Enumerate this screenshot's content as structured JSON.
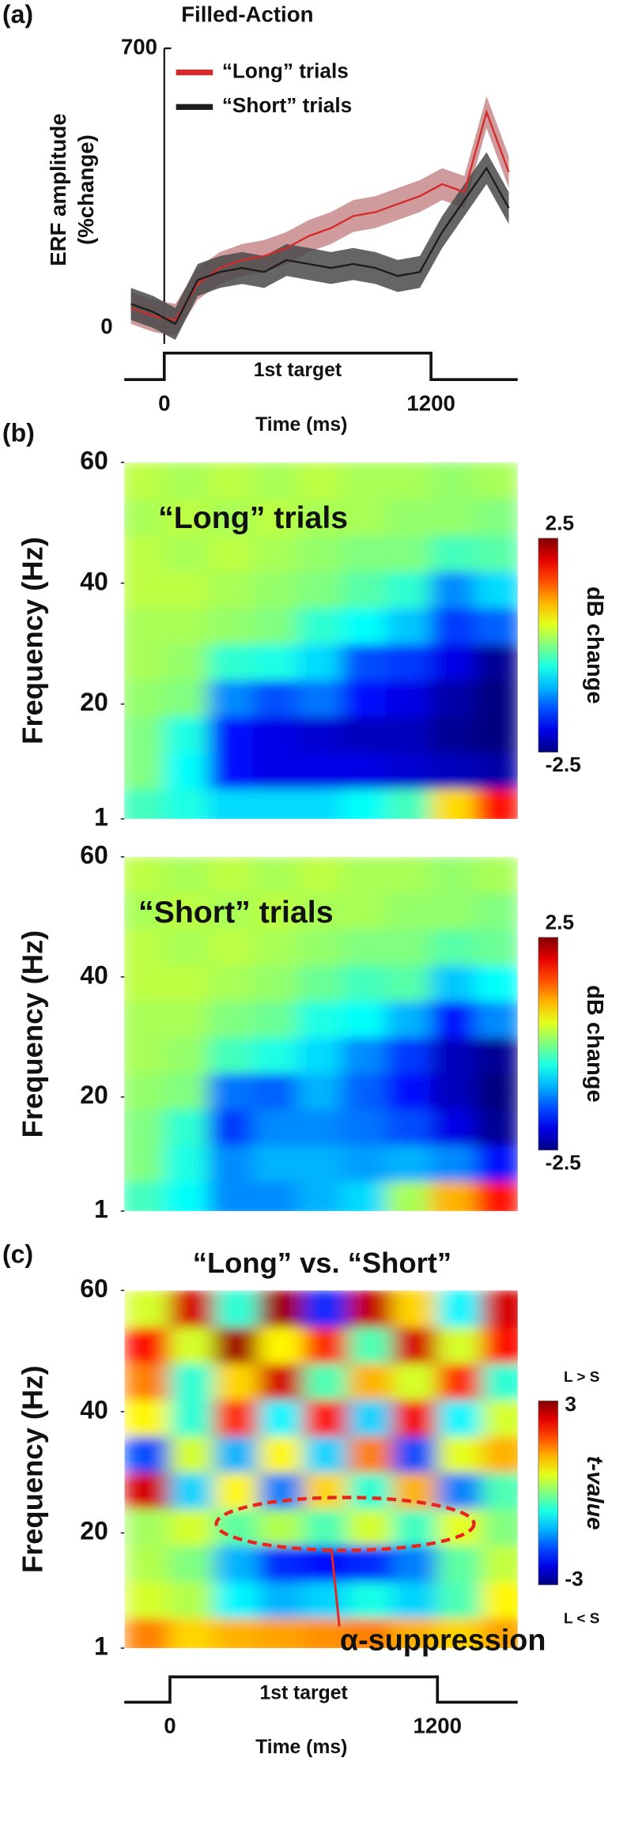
{
  "chart_data": [
    {
      "type": "line",
      "panel_label": "(a)",
      "title": "Filled-Action",
      "y_label": [
        "ERF amplitude",
        "(%change)"
      ],
      "x_label": "Time (ms)",
      "annotation": "1st target",
      "x": [
        -150,
        -50,
        50,
        150,
        250,
        350,
        450,
        550,
        650,
        750,
        850,
        950,
        1050,
        1150,
        1250,
        1350,
        1450,
        1550
      ],
      "series": [
        {
          "name": "“Long” trials",
          "color": "#d42a2a",
          "band_color": "#c88a8c",
          "error": 40,
          "values": [
            50,
            30,
            20,
            110,
            150,
            170,
            180,
            200,
            230,
            250,
            280,
            290,
            310,
            330,
            360,
            340,
            540,
            390
          ]
        },
        {
          "name": "“Short” trials",
          "color": "#1c1c1c",
          "band_color": "#4a4a4a",
          "error": 40,
          "values": [
            60,
            40,
            10,
            120,
            140,
            150,
            140,
            170,
            160,
            150,
            160,
            150,
            130,
            140,
            240,
            320,
            400,
            300
          ]
        }
      ],
      "xlim": [
        -180,
        1590
      ],
      "ylim": [
        -40,
        700
      ],
      "xticks": [
        0,
        1200
      ],
      "yticks": [
        0,
        700
      ]
    },
    {
      "type": "heatmap",
      "panel_label": "(b)",
      "title": "“Long” trials",
      "y_label": "Frequency (Hz)",
      "colorbar_label": "dB change",
      "x": [
        -100,
        100,
        300,
        500,
        700,
        900,
        1100,
        1300,
        1500
      ],
      "y": [
        3,
        9,
        15,
        21,
        27,
        33,
        39,
        45,
        51,
        57
      ],
      "z": [
        [
          -0.3,
          -0.5,
          -0.8,
          -0.8,
          -0.8,
          -0.6,
          -0.3,
          0.8,
          1.8
        ],
        [
          0,
          -0.6,
          -1.8,
          -2.0,
          -2.0,
          -2.0,
          -2.1,
          -2.2,
          -2.3
        ],
        [
          0,
          -0.5,
          -1.8,
          -2.0,
          -2.1,
          -2.2,
          -2.2,
          -2.4,
          -2.5
        ],
        [
          0.1,
          0,
          -1.2,
          -1.5,
          -1.3,
          -1.8,
          -2.0,
          -2.3,
          -2.5
        ],
        [
          0.2,
          0.1,
          -0.4,
          -0.5,
          -0.8,
          -1.5,
          -1.6,
          -2.0,
          -2.4
        ],
        [
          0.2,
          0.2,
          0.1,
          0,
          -0.4,
          -0.6,
          -0.9,
          -1.6,
          -1.4
        ],
        [
          0.3,
          0.3,
          0.2,
          0.1,
          0,
          -0.2,
          -0.4,
          -1.2,
          -0.8
        ],
        [
          0.3,
          0.2,
          0.3,
          0.2,
          0.1,
          0,
          0,
          -0.3,
          -0.2
        ],
        [
          0.2,
          0.3,
          0.2,
          0.3,
          0.2,
          0.2,
          0.1,
          0.1,
          0
        ],
        [
          0.3,
          0.2,
          0.3,
          0.2,
          0.3,
          0.2,
          0.2,
          0.1,
          0.2
        ]
      ],
      "xlim": [
        -180,
        1590
      ],
      "ylim": [
        1,
        60
      ],
      "yticks": [
        1,
        20,
        40,
        60
      ],
      "zlim": [
        -2.5,
        2.5
      ],
      "zticks": [
        -2.5,
        2.5
      ]
    },
    {
      "type": "heatmap",
      "title": "“Short” trials",
      "y_label": "Frequency (Hz)",
      "colorbar_label": "dB change",
      "x": [
        -100,
        100,
        300,
        500,
        700,
        900,
        1100,
        1300,
        1500
      ],
      "y": [
        3,
        9,
        15,
        21,
        27,
        33,
        39,
        45,
        51,
        57
      ],
      "z": [
        [
          -0.3,
          -0.6,
          -1.2,
          -1.2,
          -1.0,
          -0.8,
          0.2,
          1.0,
          1.8
        ],
        [
          0,
          -0.5,
          -1.2,
          -1.0,
          -1.0,
          -1.1,
          -1.0,
          -1.2,
          -1.8
        ],
        [
          0,
          -0.4,
          -1.6,
          -1.2,
          -1.2,
          -1.3,
          -1.5,
          -2.0,
          -2.4
        ],
        [
          0.1,
          0,
          -1.3,
          -1.4,
          -1.0,
          -1.4,
          -1.8,
          -2.2,
          -2.5
        ],
        [
          0.2,
          0.1,
          -0.3,
          -0.5,
          -0.8,
          -1.2,
          -1.6,
          -2.2,
          -2.4
        ],
        [
          0.2,
          0.2,
          0,
          -0.1,
          -0.5,
          -0.6,
          -1.0,
          -1.8,
          -1.2
        ],
        [
          0.3,
          0.3,
          0.2,
          0.1,
          -0.1,
          -0.3,
          -0.2,
          -0.9,
          -0.6
        ],
        [
          0.3,
          0.2,
          0.3,
          0.2,
          0.1,
          0,
          0,
          -0.2,
          -0.1
        ],
        [
          0.2,
          0.3,
          0.2,
          0.3,
          0.2,
          0.2,
          0.1,
          0.1,
          0
        ],
        [
          0.3,
          0.2,
          0.3,
          0.2,
          0.3,
          0.2,
          0.2,
          0.1,
          0.2
        ]
      ],
      "xlim": [
        -180,
        1590
      ],
      "ylim": [
        1,
        60
      ],
      "yticks": [
        1,
        20,
        40,
        60
      ],
      "zlim": [
        -2.5,
        2.5
      ],
      "zticks": [
        -2.5,
        2.5
      ]
    },
    {
      "type": "heatmap",
      "panel_label": "(c)",
      "title": "“Long” vs.  “Short”",
      "y_label": "Frequency (Hz)",
      "colorbar_label": "t-value",
      "colorbar_top": "L > S",
      "colorbar_bottom": "L < S",
      "annotation": "α-suppression",
      "stimulus_label": "1st target",
      "x_label": "Time (ms)",
      "x": [
        -100,
        100,
        300,
        500,
        700,
        900,
        1100,
        1300,
        1500
      ],
      "y": [
        3,
        9,
        15,
        21,
        27,
        33,
        39,
        45,
        51,
        57
      ],
      "z": [
        [
          1.5,
          1.0,
          1.2,
          1.3,
          1.4,
          1.5,
          1.2,
          1.0,
          1.3
        ],
        [
          0.5,
          0.3,
          -0.8,
          -1.2,
          -1.0,
          -0.6,
          -1.0,
          -0.3,
          0.8
        ],
        [
          0.3,
          0,
          -1.2,
          -2.0,
          -2.2,
          -2.0,
          -1.5,
          -0.2,
          0.4
        ],
        [
          0.2,
          0.5,
          -0.2,
          0.3,
          -0.3,
          0.5,
          -0.4,
          0.6,
          0
        ],
        [
          2.5,
          -1.0,
          0.8,
          -1.5,
          1.0,
          -0.5,
          1.2,
          -1.5,
          -0.3
        ],
        [
          -1.8,
          0.5,
          -1.2,
          0.8,
          -1.0,
          1.5,
          -1.8,
          0.6,
          1.2
        ],
        [
          0.8,
          -0.5,
          2.0,
          -0.8,
          2.2,
          -1.0,
          2.3,
          -0.8,
          0.5
        ],
        [
          1.5,
          -0.5,
          1.0,
          2.5,
          -0.3,
          1.2,
          0.5,
          2.0,
          -0.5
        ],
        [
          2.2,
          0.5,
          2.8,
          0.8,
          2.0,
          -0.3,
          2.5,
          0.5,
          2.2
        ],
        [
          0.5,
          2.5,
          -0.5,
          2.8,
          -2.0,
          2.6,
          1.0,
          -0.8,
          2.5
        ]
      ],
      "xlim": [
        -205,
        1560
      ],
      "ylim": [
        1,
        60
      ],
      "xticks": [
        0,
        1200
      ],
      "yticks": [
        1,
        20,
        40,
        60
      ],
      "zlim": [
        -3,
        3
      ],
      "zticks": [
        -3,
        3
      ]
    }
  ]
}
